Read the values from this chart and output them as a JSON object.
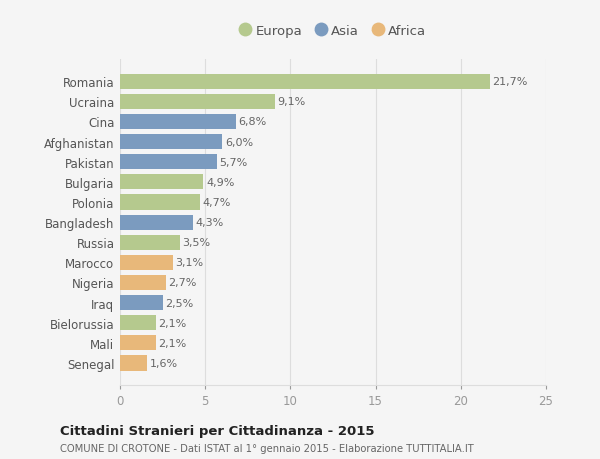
{
  "categories": [
    "Romania",
    "Ucraina",
    "Cina",
    "Afghanistan",
    "Pakistan",
    "Bulgaria",
    "Polonia",
    "Bangladesh",
    "Russia",
    "Marocco",
    "Nigeria",
    "Iraq",
    "Bielorussia",
    "Mali",
    "Senegal"
  ],
  "values": [
    21.7,
    9.1,
    6.8,
    6.0,
    5.7,
    4.9,
    4.7,
    4.3,
    3.5,
    3.1,
    2.7,
    2.5,
    2.1,
    2.1,
    1.6
  ],
  "continents": [
    "Europa",
    "Europa",
    "Asia",
    "Asia",
    "Asia",
    "Europa",
    "Europa",
    "Asia",
    "Europa",
    "Africa",
    "Africa",
    "Asia",
    "Europa",
    "Africa",
    "Africa"
  ],
  "colors": {
    "Europa": "#b5c98e",
    "Asia": "#7b9bbf",
    "Africa": "#e8b87a"
  },
  "labels": [
    "21,7%",
    "9,1%",
    "6,8%",
    "6,0%",
    "5,7%",
    "4,9%",
    "4,7%",
    "4,3%",
    "3,5%",
    "3,1%",
    "2,7%",
    "2,5%",
    "2,1%",
    "2,1%",
    "1,6%"
  ],
  "xlim": [
    0,
    25
  ],
  "xticks": [
    0,
    5,
    10,
    15,
    20,
    25
  ],
  "title": "Cittadini Stranieri per Cittadinanza - 2015",
  "subtitle": "COMUNE DI CROTONE - Dati ISTAT al 1° gennaio 2015 - Elaborazione TUTTITALIA.IT",
  "background_color": "#f5f5f5",
  "bar_height": 0.75,
  "legend_labels": [
    "Europa",
    "Asia",
    "Africa"
  ],
  "grid_color": "#dddddd",
  "label_color": "#666666",
  "ytick_color": "#555555"
}
